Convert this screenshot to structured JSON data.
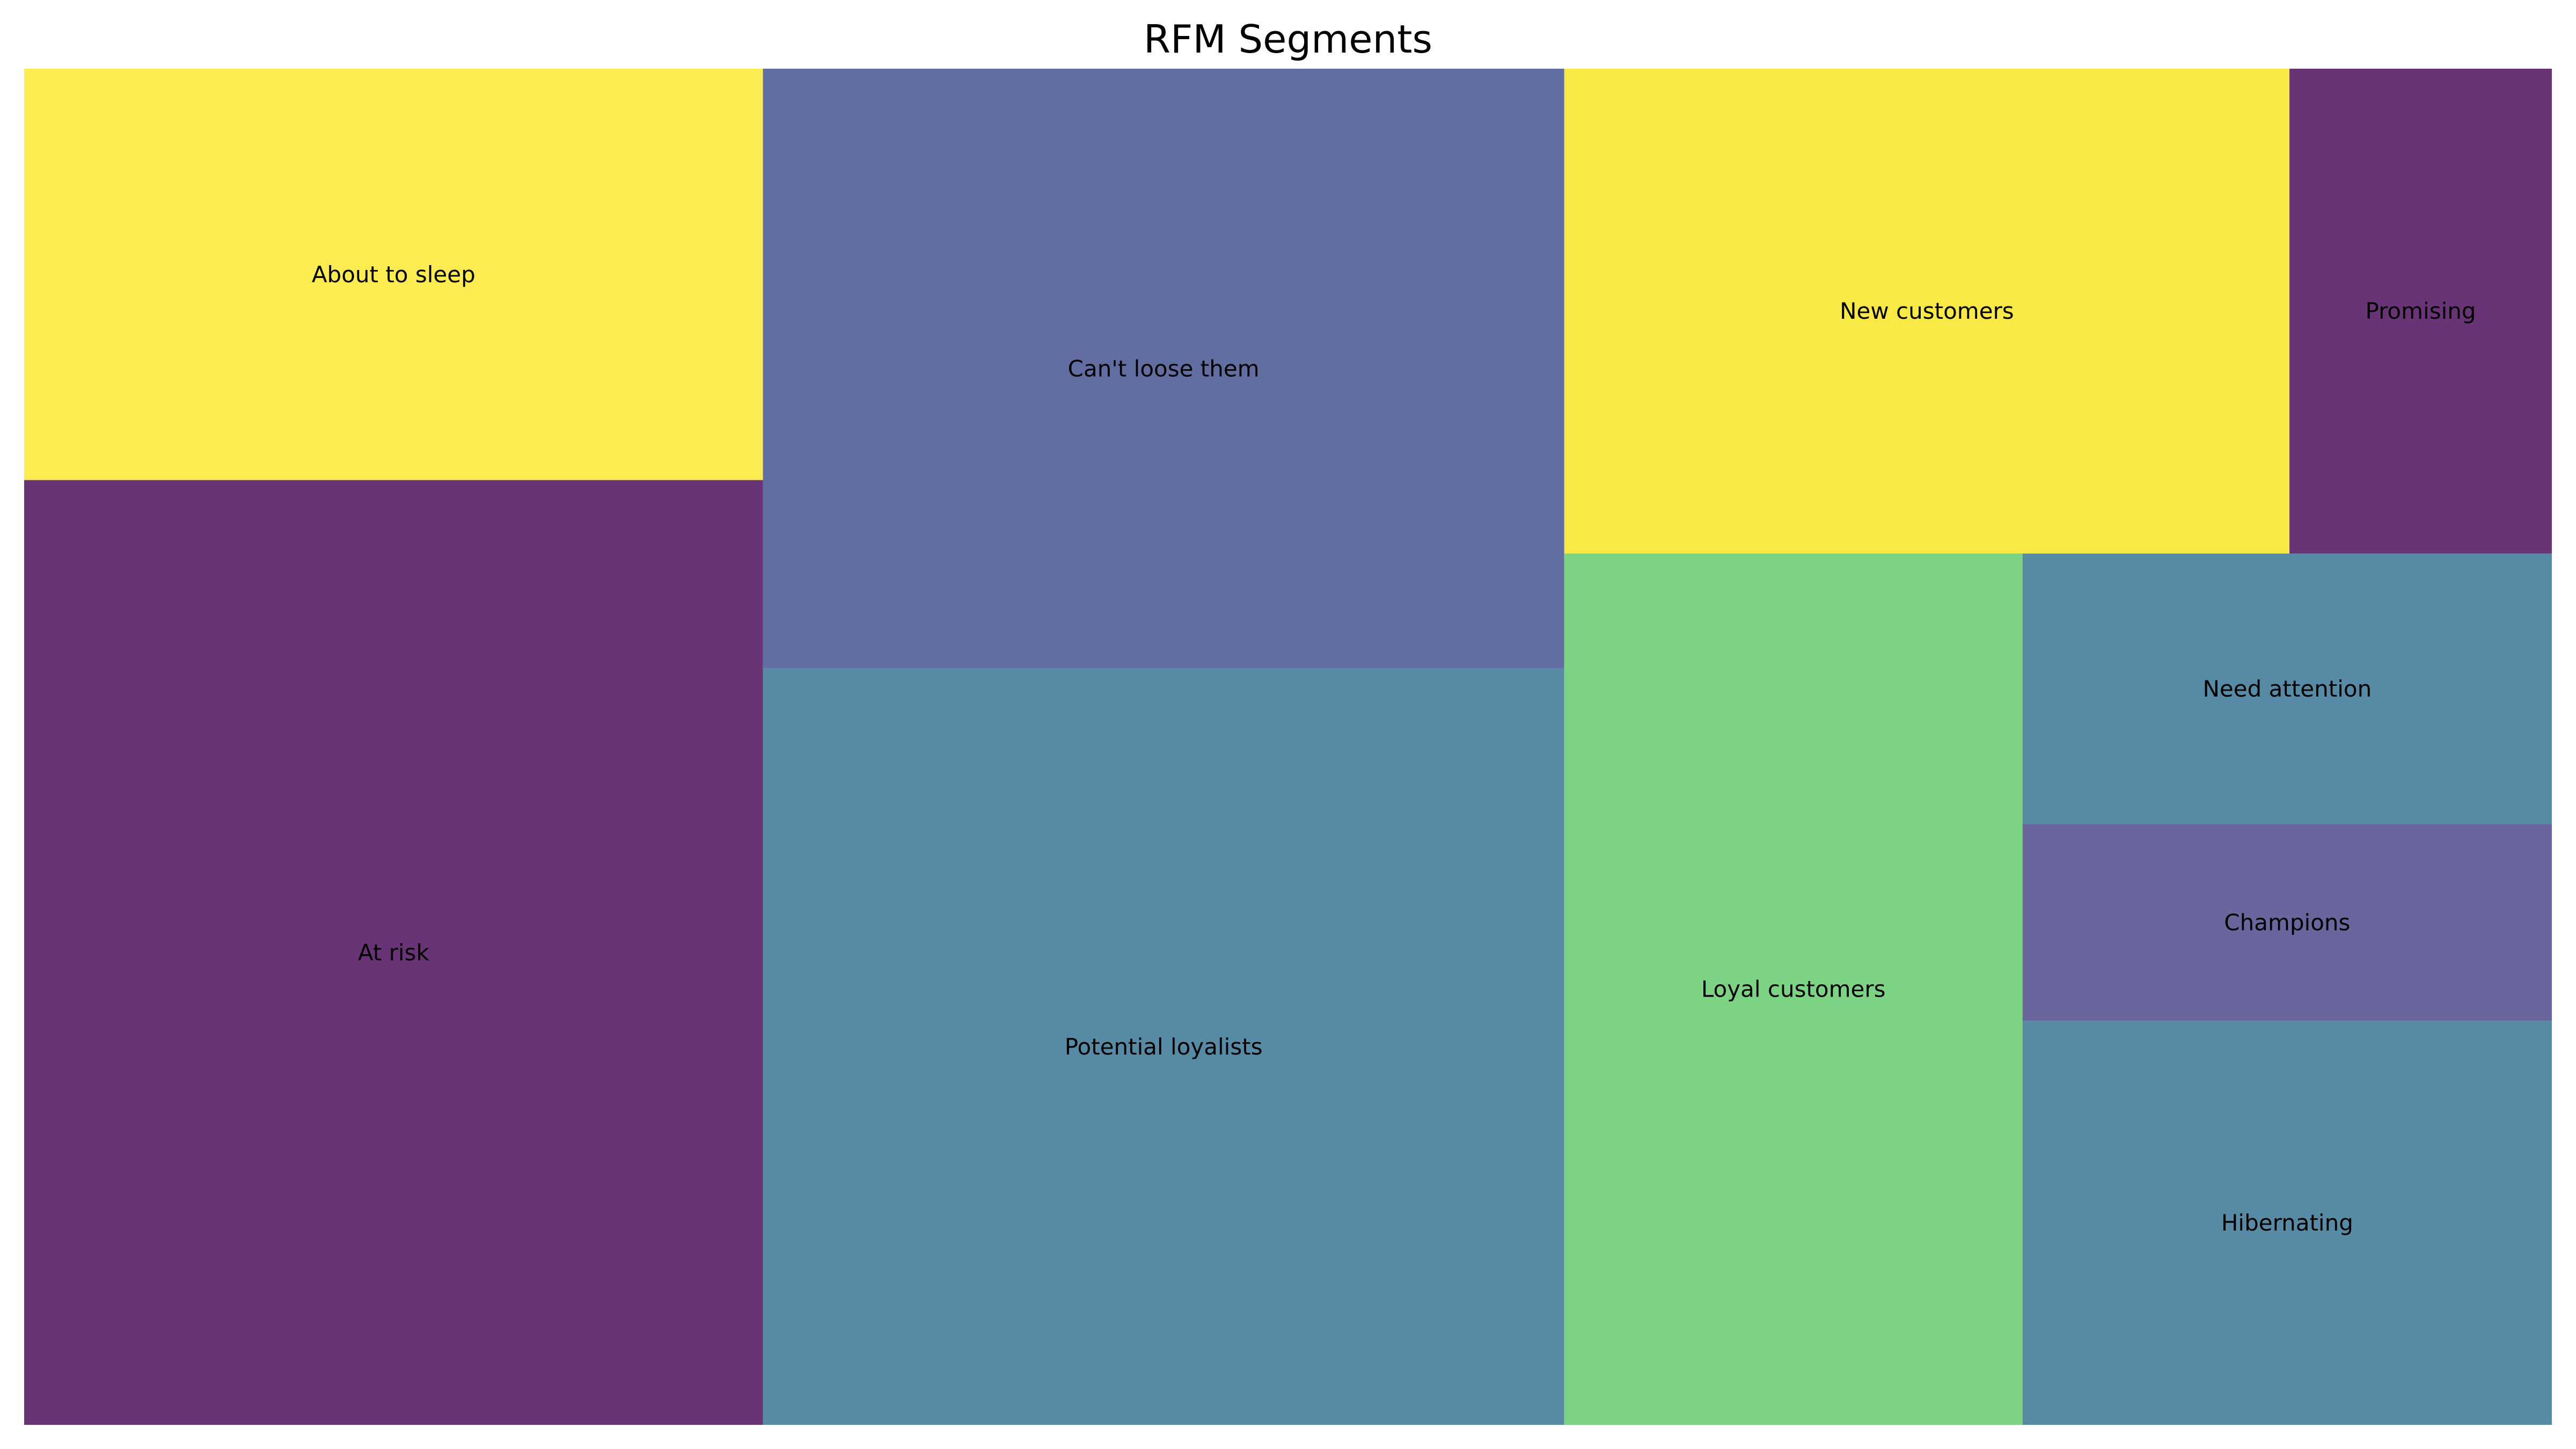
{
  "chart_data": {
    "type": "treemap",
    "title": "RFM Segments",
    "segments": [
      {
        "label": "About to sleep",
        "value": 1720,
        "color": "#fde725"
      },
      {
        "label": "At risk",
        "value": 3950,
        "color": "#440154"
      },
      {
        "label": "Can't loose them",
        "value": 2720,
        "color": "#3b4a8b"
      },
      {
        "label": "Potential loyalists",
        "value": 3430,
        "color": "#2d6e8e"
      },
      {
        "label": "New customers",
        "value": 1990,
        "color": "#f7e418"
      },
      {
        "label": "Promising",
        "value": 720,
        "color": "#440154"
      },
      {
        "label": "Loyal customers",
        "value": 2260,
        "color": "#5ac864"
      },
      {
        "label": "Need attention",
        "value": 810,
        "color": "#2d6e8e"
      },
      {
        "label": "Champions",
        "value": 590,
        "color": "#433e85"
      },
      {
        "label": "Hibernating",
        "value": 1210,
        "color": "#2d6e8e"
      }
    ],
    "opacity": 0.8,
    "axes": "off",
    "legend": "none"
  }
}
